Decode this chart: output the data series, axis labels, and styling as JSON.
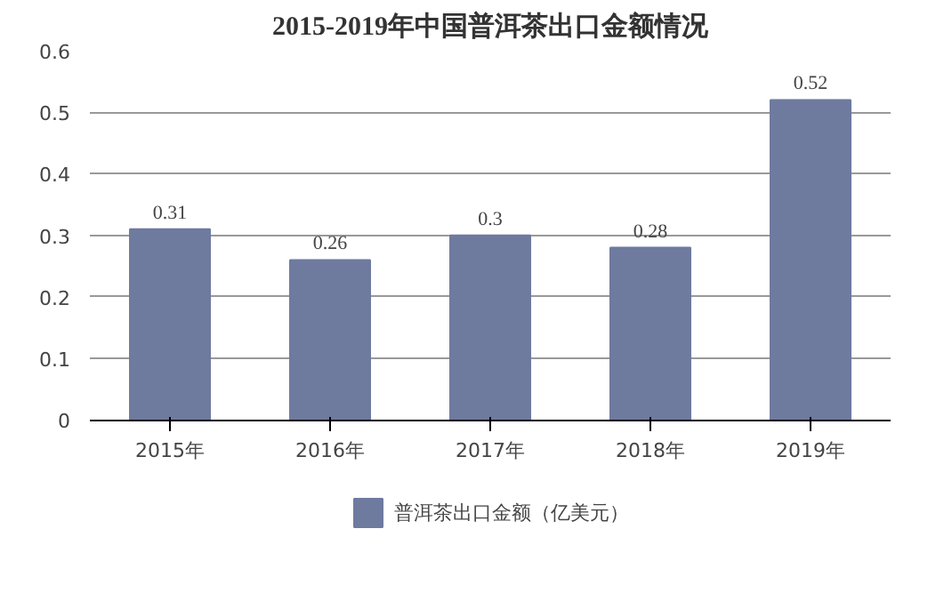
{
  "chart_data": {
    "type": "bar",
    "title": "2015-2019年中国普洱茶出口金额情况",
    "categories": [
      "2015年",
      "2016年",
      "2017年",
      "2018年",
      "2019年"
    ],
    "series": [
      {
        "name": "普洱茶出口金额（亿美元）",
        "color": "#6f7a9f",
        "values": [
          0.31,
          0.26,
          0.3,
          0.28,
          0.52
        ]
      }
    ],
    "ylim": [
      0,
      0.6
    ],
    "yticks": [
      0,
      0.1,
      0.2,
      0.3,
      0.4,
      0.5,
      0.6
    ],
    "grid": "y",
    "legend": "bottom",
    "data_labels": true
  }
}
